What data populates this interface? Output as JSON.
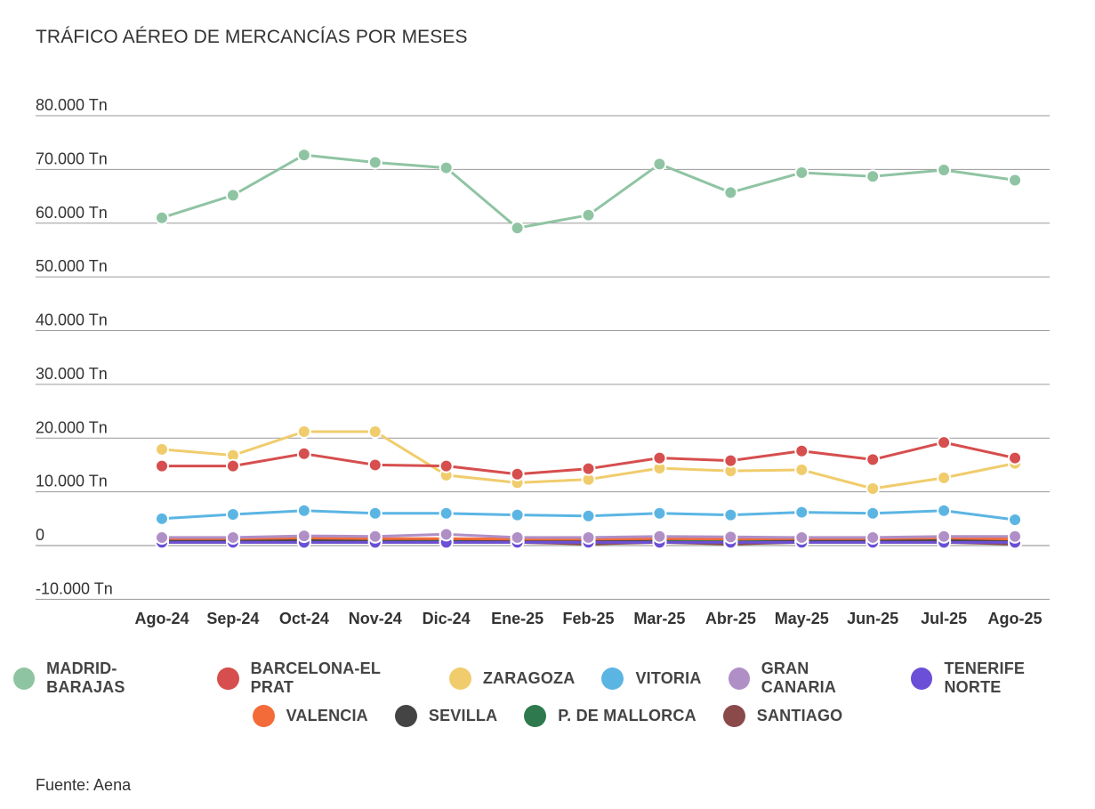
{
  "title": "TRÁFICO AÉREO DE MERCANCÍAS POR MESES",
  "source": "Fuente: Aena",
  "chart_data": {
    "type": "line",
    "categories": [
      "Ago-24",
      "Sep-24",
      "Oct-24",
      "Nov-24",
      "Dic-24",
      "Ene-25",
      "Feb-25",
      "Mar-25",
      "Abr-25",
      "May-25",
      "Jun-25",
      "Jul-25",
      "Ago-25"
    ],
    "y_ticks": [
      {
        "value": 80000,
        "label": "80.000 Tn"
      },
      {
        "value": 70000,
        "label": "70.000 Tn"
      },
      {
        "value": 60000,
        "label": "60.000 Tn"
      },
      {
        "value": 50000,
        "label": "50.000 Tn"
      },
      {
        "value": 40000,
        "label": "40.000 Tn"
      },
      {
        "value": 30000,
        "label": "30.000 Tn"
      },
      {
        "value": 20000,
        "label": "20.000 Tn"
      },
      {
        "value": 10000,
        "label": "10.000 Tn"
      },
      {
        "value": 0,
        "label": "0"
      },
      {
        "value": -10000,
        "label": "-10.000 Tn"
      }
    ],
    "ylim": [
      -10000,
      80000
    ],
    "grid": true,
    "legend_position": "bottom",
    "series": [
      {
        "name": "MADRID-BARAJAS",
        "color": "#8fc4a3",
        "values": [
          61000,
          65200,
          72700,
          71300,
          70300,
          59100,
          61500,
          71000,
          65700,
          69400,
          68700,
          69900,
          68000
        ]
      },
      {
        "name": "BARCELONA-EL PRAT",
        "color": "#d64e4e",
        "values": [
          14800,
          14800,
          17100,
          15000,
          14800,
          13300,
          14300,
          16300,
          15800,
          17600,
          16000,
          19200,
          16300
        ]
      },
      {
        "name": "ZARAGOZA",
        "color": "#f0cc6c",
        "values": [
          17900,
          16800,
          21200,
          21200,
          13100,
          11700,
          12300,
          14400,
          13900,
          14100,
          10600,
          12600,
          15300
        ]
      },
      {
        "name": "VITORIA",
        "color": "#5bb5e3",
        "values": [
          5000,
          5800,
          6500,
          6000,
          6000,
          5700,
          5500,
          6000,
          5700,
          6200,
          6000,
          6500,
          4800
        ]
      },
      {
        "name": "GRAN CANARIA",
        "color": "#b08fc7",
        "values": [
          1500,
          1500,
          1800,
          1700,
          2100,
          1500,
          1500,
          1700,
          1600,
          1500,
          1500,
          1700,
          1700
        ]
      },
      {
        "name": "TENERIFE NORTE",
        "color": "#6b4fd6",
        "values": [
          600,
          600,
          600,
          600,
          600,
          600,
          600,
          600,
          600,
          600,
          600,
          600,
          600
        ]
      },
      {
        "name": "VALENCIA",
        "color": "#f26b38",
        "values": [
          1300,
          1300,
          1400,
          1300,
          1300,
          1200,
          1200,
          1300,
          1200,
          1300,
          1300,
          1400,
          1200
        ]
      },
      {
        "name": "SEVILLA",
        "color": "#444444",
        "values": [
          1000,
          1000,
          1100,
          1100,
          1200,
          900,
          800,
          1200,
          1400,
          900,
          1000,
          1100,
          800
        ]
      },
      {
        "name": "P. DE MALLORCA",
        "color": "#2e7a4e",
        "values": [
          900,
          900,
          900,
          800,
          800,
          800,
          800,
          800,
          800,
          800,
          800,
          800,
          800
        ]
      },
      {
        "name": "SANTIAGO",
        "color": "#8a4a4a",
        "values": [
          600,
          600,
          600,
          600,
          600,
          600,
          300,
          600,
          300,
          600,
          600,
          600,
          300
        ]
      }
    ]
  }
}
